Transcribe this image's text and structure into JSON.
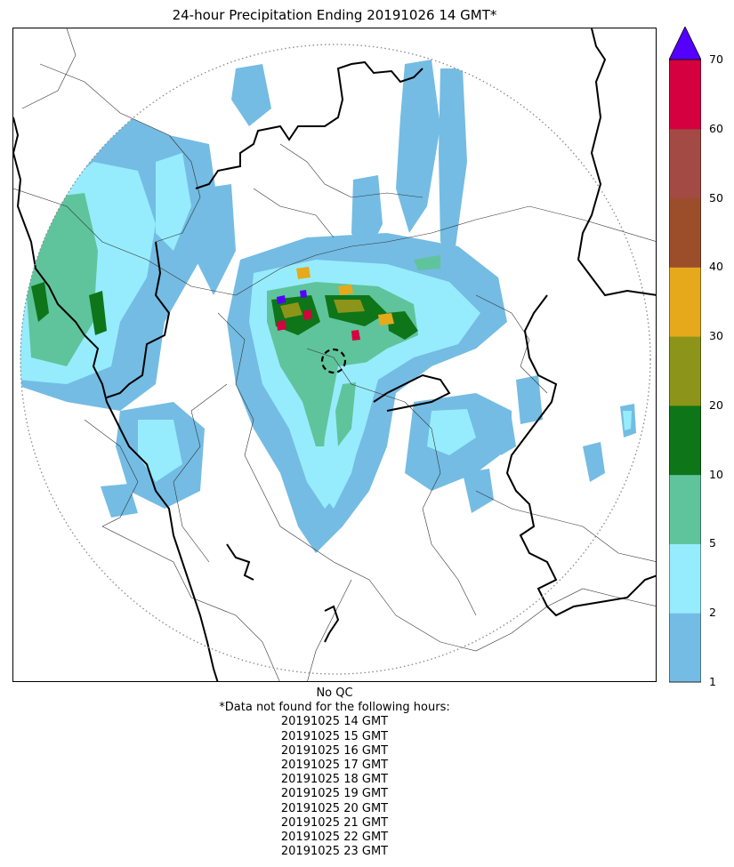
{
  "title": "24-hour Precipitation Ending 20191026 14 GMT*",
  "colorbar": {
    "levels": [
      "1",
      "2",
      "5",
      "10",
      "20",
      "30",
      "40",
      "50",
      "60",
      "70"
    ],
    "colors": [
      "#74BCE3",
      "#96ECFD",
      "#5FC49B",
      "#0E7519",
      "#8C9519",
      "#E6A91B",
      "#9C4E2B",
      "#A34A44",
      "#D5003F"
    ],
    "extend_color": "#5500FF"
  },
  "footer": {
    "qc_text": "No QC",
    "missing_header": "*Data not found for the following hours:",
    "missing_hours": [
      "20191025 14 GMT",
      "20191025 15 GMT",
      "20191025 16 GMT",
      "20191025 17 GMT",
      "20191025 18 GMT",
      "20191025 19 GMT",
      "20191025 20 GMT",
      "20191025 21 GMT",
      "20191025 22 GMT",
      "20191025 23 GMT"
    ]
  }
}
